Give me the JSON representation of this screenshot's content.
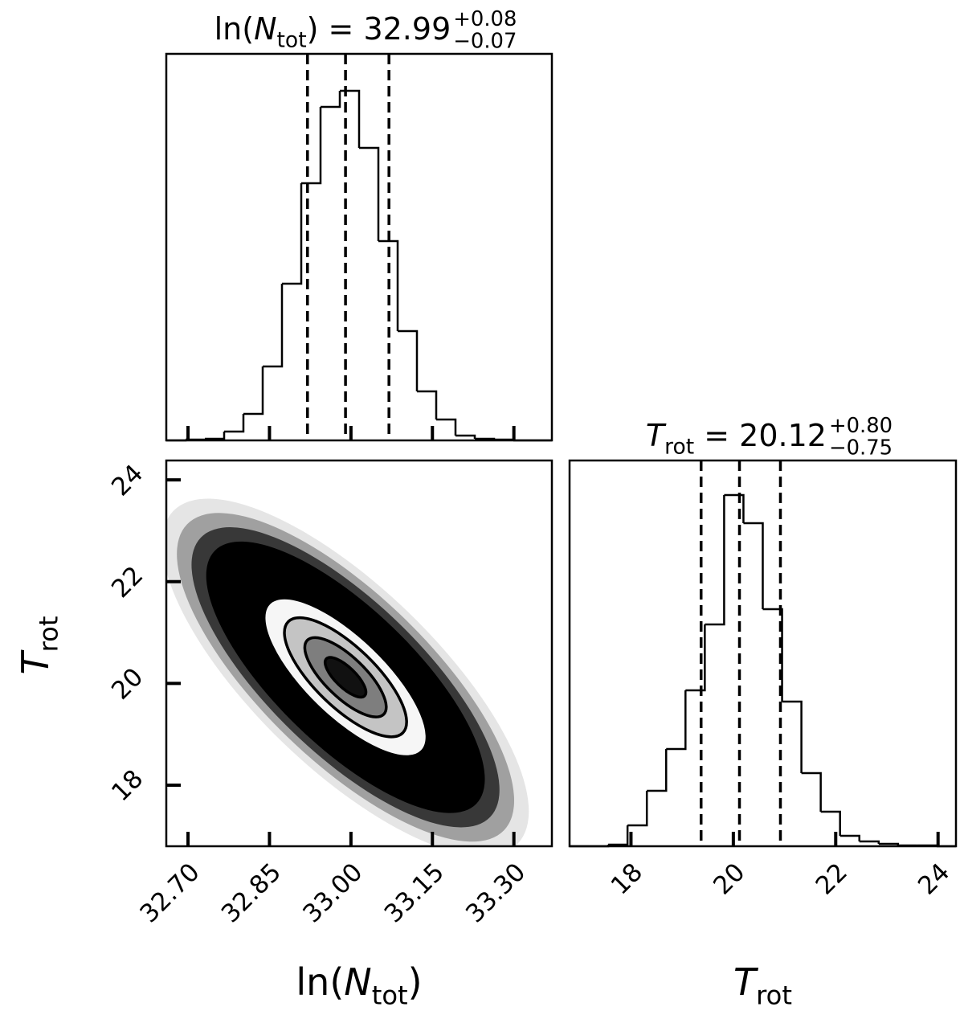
{
  "chart_data": [
    {
      "type": "histogram",
      "title": {
        "prefix": "ln(",
        "var": "N",
        "sub": "tot",
        "rest": ") = 32.99",
        "plus": "+0.08",
        "minus": "−0.07"
      },
      "bins": [
        32.66,
        32.6955,
        32.731,
        32.7665,
        32.802,
        32.8375,
        32.873,
        32.9085,
        32.944,
        32.9795,
        33.015,
        33.0505,
        33.086,
        33.1215,
        33.157,
        33.1925,
        33.228,
        33.2635,
        33.299,
        33.3345,
        33.37
      ],
      "values": [
        0,
        1,
        2,
        11,
        33,
        92,
        195,
        320,
        415,
        435,
        364,
        248,
        136,
        61,
        26,
        6,
        2,
        1,
        0,
        0
      ],
      "quantiles": [
        32.92,
        32.99,
        33.07
      ],
      "xlim": [
        32.66,
        33.37
      ],
      "xticks": [
        32.7,
        32.85,
        33.0,
        33.15,
        33.3
      ],
      "ylim": [
        0,
        481
      ]
    },
    {
      "type": "density2d",
      "mean": [
        32.99,
        20.12
      ],
      "std": [
        0.075,
        0.78
      ],
      "corr": -0.75,
      "levels": [
        2,
        1.5,
        1,
        0.5
      ],
      "cloud_extent": 4.5,
      "xlim": [
        32.66,
        33.37
      ],
      "xticks": [
        {
          "value": 32.7,
          "label": "32.70"
        },
        {
          "value": 32.85,
          "label": "32.85"
        },
        {
          "value": 33.0,
          "label": "33.00"
        },
        {
          "value": 33.15,
          "label": "33.15"
        },
        {
          "value": 33.3,
          "label": "33.30"
        }
      ],
      "ylim": [
        16.8,
        24.38
      ],
      "yticks": [
        18,
        20,
        22,
        24
      ],
      "xlabel": {
        "prefix": "ln(",
        "var": "N",
        "sub": "tot",
        "suffix": ")"
      },
      "ylabel": {
        "var": "T",
        "sub": "rot"
      }
    },
    {
      "type": "histogram",
      "title": {
        "var": "T",
        "sub": "rot",
        "rest": " = 20.12",
        "plus": "+0.80",
        "minus": "−0.75"
      },
      "bins": [
        16.8,
        17.1775,
        17.555,
        17.9325,
        18.31,
        18.6875,
        19.065,
        19.4425,
        19.82,
        20.1975,
        20.575,
        20.9525,
        21.33,
        21.7075,
        22.085,
        22.4625,
        22.84,
        23.2175,
        23.595,
        23.9725,
        24.35
      ],
      "values": [
        0,
        0,
        2,
        26,
        69,
        121,
        194,
        276,
        437,
        402,
        295,
        180,
        91,
        43,
        13,
        6,
        3,
        1,
        1,
        0
      ],
      "quantiles": [
        19.37,
        20.12,
        20.92
      ],
      "xlim": [
        16.8,
        24.35
      ],
      "xticks": [
        18,
        20,
        22,
        24
      ],
      "ylim": [
        0,
        480
      ],
      "xlabel": {
        "var": "T",
        "sub": "rot"
      }
    }
  ]
}
